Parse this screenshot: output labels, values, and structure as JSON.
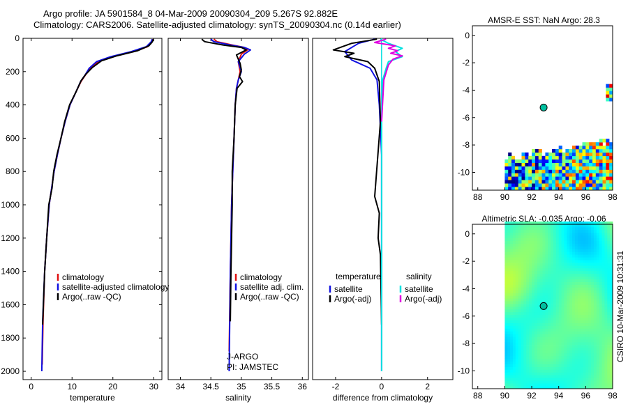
{
  "figure": {
    "title_line1": "Argo profile: JA 5901584_8 04-Mar-2009 20090304_209 5.267S 92.882E",
    "title_line2": "Climatology: CARS2006. Satellite-adjusted climatology: synTS_20090304.nc (0.14d earlier)",
    "side_label": "CSIRO 10-Mar-2009 10:31:31",
    "colors": {
      "climatology": "#e01010",
      "satellite": "#1010e0",
      "argo": "#000000",
      "sat_salinity": "#00e0e0",
      "argo_salinity_adj": "#e000e0",
      "marker": "#00c0a0"
    }
  },
  "chart_data": [
    {
      "id": "temperature",
      "type": "line",
      "xlabel": "temperature",
      "xlim": [
        -2,
        32
      ],
      "ylim": [
        2050,
        0
      ],
      "xticks": [
        0,
        10,
        20,
        30
      ],
      "yticks": [
        0,
        200,
        400,
        600,
        800,
        1000,
        1200,
        1400,
        1600,
        1800,
        2000
      ],
      "legend": [
        "climatology",
        "satellite-adjusted climatology",
        "Argo(..raw -QC)"
      ],
      "series": [
        {
          "name": "climatology",
          "x": [
            29.8,
            29.6,
            28.5,
            25,
            20,
            16.5,
            14.5,
            13.3,
            12.2,
            11,
            9.5,
            8.3,
            7.3,
            6.4,
            5.6,
            5,
            4.4,
            3.8,
            3.3,
            2.9,
            2.7
          ],
          "y": [
            5,
            20,
            50,
            80,
            110,
            140,
            180,
            220,
            260,
            320,
            400,
            500,
            600,
            700,
            800,
            900,
            1000,
            1200,
            1400,
            1700,
            1960
          ]
        },
        {
          "name": "satellite",
          "x": [
            29.6,
            29.4,
            28.2,
            24.5,
            19.5,
            16,
            14.2,
            13.2,
            12.1,
            11,
            9.5,
            8.3,
            7.3,
            6.4,
            5.6,
            5,
            4.4,
            3.8,
            3.3,
            2.8,
            2.6
          ],
          "y": [
            5,
            20,
            50,
            80,
            110,
            140,
            180,
            220,
            260,
            320,
            400,
            500,
            600,
            700,
            800,
            900,
            1000,
            1200,
            1400,
            1700,
            2000
          ]
        },
        {
          "name": "argo",
          "x": [
            29.9,
            29.7,
            28.8,
            26,
            21,
            17.2,
            15,
            13.4,
            12.2,
            11,
            9.4,
            8.2,
            7.3,
            6.3,
            5.5,
            5.1,
            4.3,
            3.8,
            3.3,
            2.8
          ],
          "y": [
            5,
            20,
            45,
            75,
            105,
            135,
            175,
            215,
            255,
            320,
            400,
            500,
            600,
            700,
            800,
            900,
            1000,
            1200,
            1400,
            1720
          ]
        }
      ]
    },
    {
      "id": "salinity",
      "type": "line",
      "xlabel": "salinity",
      "xlim": [
        33.8,
        36.1
      ],
      "ylim": [
        2050,
        0
      ],
      "xticks": [
        34,
        34.5,
        35,
        35.5,
        36
      ],
      "yticks": [],
      "legend": [
        "climatology",
        "satellite adj. clim.",
        "Argo(..raw -QC)"
      ],
      "annotations": [
        "J-ARGO",
        "PI: JAMSTEC"
      ],
      "series": [
        {
          "name": "climatology",
          "x": [
            34.55,
            34.6,
            34.85,
            35.05,
            35.1,
            35,
            34.95,
            34.98,
            34.95,
            34.92,
            34.9,
            34.88,
            34.86,
            34.84,
            34.82,
            34.8
          ],
          "y": [
            5,
            20,
            40,
            55,
            70,
            95,
            140,
            200,
            250,
            300,
            400,
            600,
            800,
            1000,
            1400,
            1880
          ]
        },
        {
          "name": "satellite",
          "x": [
            34.5,
            34.55,
            34.82,
            35.05,
            35.15,
            35.05,
            34.95,
            35,
            34.95,
            34.92,
            34.9,
            34.88,
            34.86,
            34.84,
            34.82,
            34.8
          ],
          "y": [
            5,
            20,
            40,
            55,
            70,
            95,
            140,
            200,
            250,
            300,
            400,
            600,
            800,
            1000,
            1400,
            2000
          ]
        },
        {
          "name": "argo",
          "x": [
            34.35,
            34.4,
            34.7,
            35,
            35.08,
            34.92,
            34.98,
            35,
            34.97,
            35.02,
            34.93,
            34.9,
            34.88,
            34.85,
            34.85,
            34.83,
            34.82
          ],
          "y": [
            5,
            20,
            40,
            55,
            70,
            100,
            150,
            190,
            230,
            260,
            300,
            400,
            600,
            800,
            1000,
            1400,
            1700
          ]
        }
      ]
    },
    {
      "id": "difference",
      "type": "line",
      "xlabel": "difference from climatology",
      "xlim": [
        -3,
        3.1
      ],
      "ylim": [
        2050,
        0
      ],
      "xticks": [
        -2,
        0,
        2
      ],
      "yticks": [],
      "legend_temperature_title": "temperature",
      "legend_salinity_title": "salinity",
      "legend": [
        "satellite",
        "Argo(-adj)",
        "satellite",
        "Argo(-adj)"
      ],
      "series": [
        {
          "name": "temperature satellite",
          "x": [
            -0.3,
            -1,
            -1.6,
            -1.3,
            -0.5,
            -0.2,
            -0.1,
            0,
            0,
            0
          ],
          "y": [
            5,
            30,
            80,
            130,
            180,
            250,
            400,
            700,
            1200,
            2000
          ]
        },
        {
          "name": "temperature Argo(-adj)",
          "x": [
            -0.2,
            -1.3,
            -2.1,
            -1.2,
            -1.6,
            -0.6,
            -0.3,
            -0.1,
            -0.05,
            -0.3,
            -0.1,
            -0.15,
            -0.05,
            0
          ],
          "y": [
            5,
            30,
            70,
            90,
            110,
            140,
            180,
            260,
            500,
            950,
            1050,
            1200,
            1300,
            1720
          ]
        },
        {
          "name": "salinity satellite",
          "x": [
            -0.05,
            0.3,
            0.9,
            0.6,
            0.9,
            0.3,
            0.2,
            0.05,
            0,
            0
          ],
          "y": [
            5,
            30,
            60,
            80,
            110,
            140,
            180,
            250,
            500,
            2000
          ]
        },
        {
          "name": "salinity Argo(-adj)",
          "x": [
            0.2,
            -0.3,
            0.6,
            0.3,
            0.7,
            0.4,
            0.9,
            0.5,
            0.3,
            0.1,
            0
          ],
          "y": [
            5,
            25,
            45,
            60,
            75,
            90,
            105,
            125,
            160,
            250,
            500
          ]
        }
      ]
    },
    {
      "id": "sst_map",
      "type": "heatmap",
      "title": "AMSR-E SST: NaN Argo: 28.3",
      "xlim": [
        87.6,
        98
      ],
      "ylim": [
        -11.3,
        0.7
      ],
      "xticks": [
        88,
        90,
        92,
        94,
        96,
        98
      ],
      "yticks": [
        0,
        -2,
        -4,
        -6,
        -8,
        -10
      ],
      "argo_position": [
        92.882,
        -5.267
      ]
    },
    {
      "id": "sla_map",
      "type": "heatmap",
      "title": "Altimetric SLA: -0.035 Argo: -0.06",
      "xlim": [
        87.6,
        98
      ],
      "ylim": [
        -11.3,
        0.7
      ],
      "xticks": [
        88,
        90,
        92,
        94,
        96,
        98
      ],
      "yticks": [
        0,
        -2,
        -4,
        -6,
        -8,
        -10
      ],
      "argo_position": [
        92.882,
        -5.267
      ]
    }
  ]
}
